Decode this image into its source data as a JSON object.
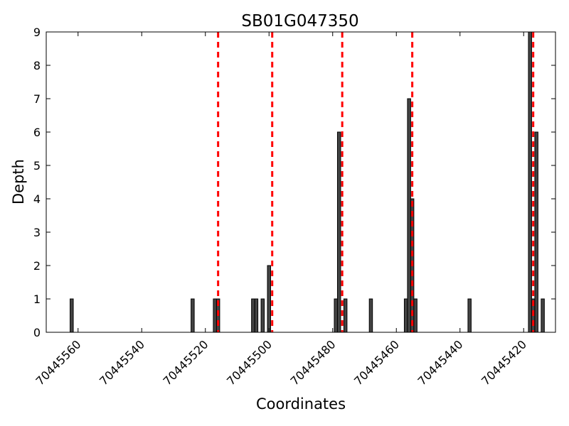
{
  "chart_data": {
    "type": "bar",
    "title": "SB01G047350",
    "xlabel": "Coordinates",
    "ylabel": "Depth",
    "xlim": [
      70445570,
      70445410
    ],
    "x_reversed": true,
    "ylim": [
      0,
      9
    ],
    "x_ticks": [
      70445560,
      70445540,
      70445520,
      70445500,
      70445480,
      70445460,
      70445440,
      70445420
    ],
    "x_tick_labels": [
      "70445560",
      "70445540",
      "70445520",
      "70445500",
      "70445480",
      "70445460",
      "70445440",
      "70445420"
    ],
    "y_ticks": [
      0,
      1,
      2,
      3,
      4,
      5,
      6,
      7,
      8,
      9
    ],
    "y_tick_labels": [
      "0",
      "1",
      "2",
      "3",
      "4",
      "5",
      "6",
      "7",
      "8",
      "9"
    ],
    "grid": false,
    "bar_color": "#444444",
    "bar_edge_color": "#000000",
    "bars": [
      {
        "x": 70445562,
        "depth": 1
      },
      {
        "x": 70445524,
        "depth": 1
      },
      {
        "x": 70445517,
        "depth": 1
      },
      {
        "x": 70445516,
        "depth": 1
      },
      {
        "x": 70445505,
        "depth": 1
      },
      {
        "x": 70445504,
        "depth": 1
      },
      {
        "x": 70445502,
        "depth": 1
      },
      {
        "x": 70445500,
        "depth": 2
      },
      {
        "x": 70445479,
        "depth": 1
      },
      {
        "x": 70445478,
        "depth": 6
      },
      {
        "x": 70445476,
        "depth": 1
      },
      {
        "x": 70445468,
        "depth": 1
      },
      {
        "x": 70445457,
        "depth": 1
      },
      {
        "x": 70445456,
        "depth": 7
      },
      {
        "x": 70445455,
        "depth": 4
      },
      {
        "x": 70445454,
        "depth": 1
      },
      {
        "x": 70445418,
        "depth": 9
      },
      {
        "x": 70445417,
        "depth": 1
      },
      {
        "x": 70445416,
        "depth": 6
      },
      {
        "x": 70445414,
        "depth": 1
      },
      {
        "x": 70445437,
        "depth": 1
      }
    ],
    "vlines": [
      {
        "x": 70445516,
        "color": "#ff0000",
        "style": "dashed"
      },
      {
        "x": 70445499,
        "color": "#ff0000",
        "style": "dashed"
      },
      {
        "x": 70445477,
        "color": "#ff0000",
        "style": "dashed"
      },
      {
        "x": 70445455,
        "color": "#ff0000",
        "style": "dashed"
      },
      {
        "x": 70445417,
        "color": "#ff0000",
        "style": "dashed"
      }
    ]
  }
}
